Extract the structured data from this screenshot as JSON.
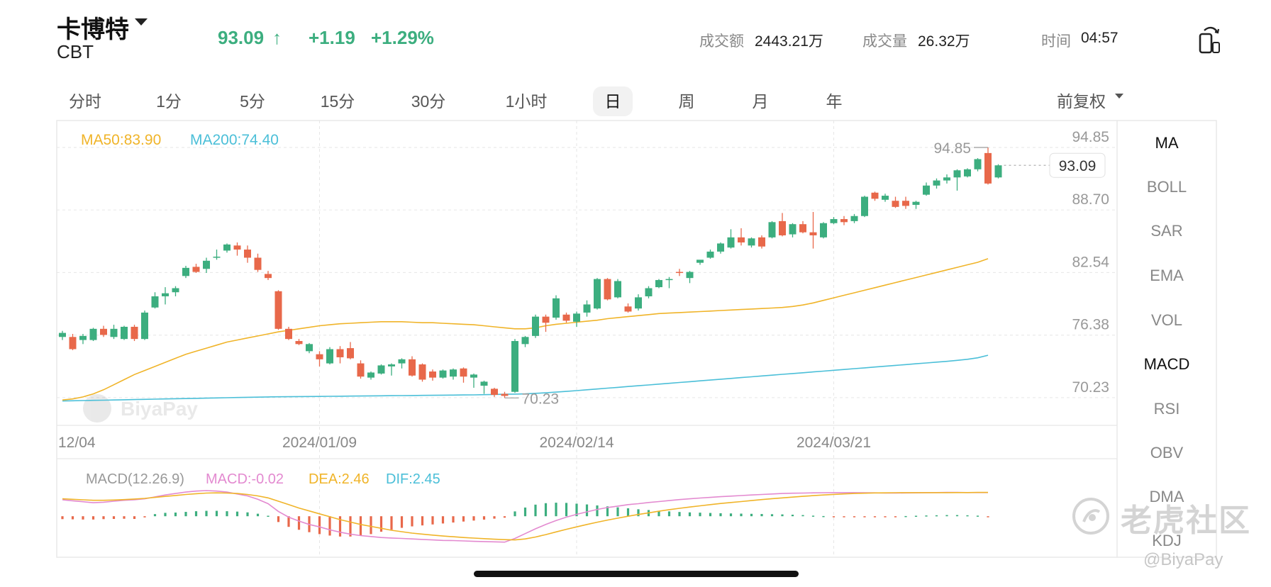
{
  "header": {
    "name": "卡博特",
    "code": "CBT",
    "price": "93.09",
    "arrow": "↑",
    "change": "+1.19",
    "change_pct": "+1.29%",
    "turnover_label": "成交额",
    "turnover_value": "2443.21万",
    "volume_label": "成交量",
    "volume_value": "26.32万",
    "time_label": "时间",
    "time_value": "04:57",
    "up_color": "#3cae7f",
    "down_color": "#e8684a"
  },
  "periods": {
    "tabs": [
      "分时",
      "1分",
      "5分",
      "15分",
      "30分",
      "1小时",
      "日",
      "周",
      "月",
      "年"
    ],
    "active": "日",
    "adjust_label": "前复权"
  },
  "side_menu": {
    "items": [
      "MA",
      "BOLL",
      "SAR",
      "EMA",
      "VOL",
      "MACD",
      "RSI",
      "OBV",
      "DMA",
      "KDJ"
    ],
    "active": [
      "MA",
      "MACD"
    ]
  },
  "chart_data": {
    "type": "candlestick",
    "ylim": [
      67.5,
      97.5
    ],
    "yticks": [
      "94.85",
      "88.70",
      "82.54",
      "76.38",
      "70.23"
    ],
    "yticks_values": [
      94.85,
      88.7,
      82.54,
      76.38,
      70.23
    ],
    "xticks": [
      "12/04",
      "2024/01/09",
      "2024/02/14",
      "2024/03/21"
    ],
    "xticks_index": [
      0,
      25,
      50,
      75
    ],
    "ma_legend": [
      "MA50:83.90",
      "MA200:74.40"
    ],
    "ma50_color": "#f0b429",
    "ma200_color": "#4bbfd8",
    "high_label": "94.85",
    "low_label": "70.23",
    "last_label": "93.09",
    "candles": [
      {
        "o": 76.2,
        "h": 76.8,
        "c": 76.6,
        "l": 75.9
      },
      {
        "o": 76.2,
        "h": 76.5,
        "c": 75.0,
        "l": 74.9
      },
      {
        "o": 75.9,
        "h": 76.5,
        "c": 76.3,
        "l": 75.5
      },
      {
        "o": 75.9,
        "h": 77.1,
        "c": 77.0,
        "l": 75.8
      },
      {
        "o": 77.0,
        "h": 77.3,
        "c": 76.4,
        "l": 76.2
      },
      {
        "o": 76.2,
        "h": 77.4,
        "c": 77.0,
        "l": 76.0
      },
      {
        "o": 76.0,
        "h": 77.3,
        "c": 77.2,
        "l": 75.9
      },
      {
        "o": 77.2,
        "h": 77.4,
        "c": 76.0,
        "l": 75.8
      },
      {
        "o": 76.0,
        "h": 78.8,
        "c": 78.6,
        "l": 75.9
      },
      {
        "o": 79.1,
        "h": 80.6,
        "c": 80.2,
        "l": 79.0
      },
      {
        "o": 80.2,
        "h": 81.1,
        "c": 80.5,
        "l": 79.4
      },
      {
        "o": 80.6,
        "h": 81.2,
        "c": 81.0,
        "l": 80.2
      },
      {
        "o": 82.2,
        "h": 83.2,
        "c": 83.0,
        "l": 82.0
      },
      {
        "o": 83.1,
        "h": 83.4,
        "c": 82.6,
        "l": 82.5
      },
      {
        "o": 82.9,
        "h": 84.0,
        "c": 83.7,
        "l": 82.5
      },
      {
        "o": 84.0,
        "h": 84.8,
        "c": 84.1,
        "l": 83.8
      },
      {
        "o": 84.7,
        "h": 85.4,
        "c": 85.3,
        "l": 84.5
      },
      {
        "o": 85.2,
        "h": 85.5,
        "c": 84.8,
        "l": 84.2
      },
      {
        "o": 84.8,
        "h": 85.2,
        "c": 84.0,
        "l": 83.5
      },
      {
        "o": 84.0,
        "h": 84.4,
        "c": 82.8,
        "l": 82.6
      },
      {
        "o": 82.4,
        "h": 82.7,
        "c": 82.0,
        "l": 81.8
      },
      {
        "o": 80.7,
        "h": 80.8,
        "c": 77.0,
        "l": 76.9
      },
      {
        "o": 77.0,
        "h": 77.2,
        "c": 76.0,
        "l": 75.9
      },
      {
        "o": 75.8,
        "h": 76.0,
        "c": 75.5,
        "l": 75.4
      },
      {
        "o": 74.8,
        "h": 75.6,
        "c": 75.5,
        "l": 74.6
      },
      {
        "o": 74.5,
        "h": 74.8,
        "c": 74.0,
        "l": 73.3
      },
      {
        "o": 73.6,
        "h": 75.2,
        "c": 75.0,
        "l": 73.5
      },
      {
        "o": 75.0,
        "h": 75.3,
        "c": 74.2,
        "l": 73.6
      },
      {
        "o": 75.1,
        "h": 75.7,
        "c": 74.1,
        "l": 74.0
      },
      {
        "o": 73.6,
        "h": 73.9,
        "c": 72.3,
        "l": 72.1
      },
      {
        "o": 72.2,
        "h": 72.8,
        "c": 72.7,
        "l": 72.0
      },
      {
        "o": 72.6,
        "h": 73.5,
        "c": 73.4,
        "l": 72.5
      },
      {
        "o": 73.3,
        "h": 73.6,
        "c": 73.5,
        "l": 72.4
      },
      {
        "o": 73.6,
        "h": 74.1,
        "c": 74.0,
        "l": 73.1
      },
      {
        "o": 74.0,
        "h": 74.3,
        "c": 72.4,
        "l": 72.3
      },
      {
        "o": 73.5,
        "h": 73.6,
        "c": 72.0,
        "l": 71.8
      },
      {
        "o": 72.8,
        "h": 73.0,
        "c": 72.2,
        "l": 71.9
      },
      {
        "o": 72.2,
        "h": 73.0,
        "c": 72.9,
        "l": 72.1
      },
      {
        "o": 72.3,
        "h": 73.1,
        "c": 73.0,
        "l": 72.0
      },
      {
        "o": 73.1,
        "h": 73.2,
        "c": 72.3,
        "l": 71.7
      },
      {
        "o": 72.2,
        "h": 72.6,
        "c": 72.5,
        "l": 71.2
      },
      {
        "o": 71.4,
        "h": 71.9,
        "c": 71.8,
        "l": 70.6
      },
      {
        "o": 71.1,
        "h": 71.2,
        "c": 70.5,
        "l": 70.3
      },
      {
        "o": 70.6,
        "h": 70.8,
        "c": 70.4,
        "l": 70.2
      },
      {
        "o": 70.8,
        "h": 76.0,
        "c": 75.8,
        "l": 70.7
      },
      {
        "o": 75.5,
        "h": 76.3,
        "c": 76.2,
        "l": 75.2
      },
      {
        "o": 76.3,
        "h": 78.4,
        "c": 78.2,
        "l": 76.1
      },
      {
        "o": 78.2,
        "h": 78.4,
        "c": 77.6,
        "l": 76.7
      },
      {
        "o": 78.1,
        "h": 80.3,
        "c": 80.0,
        "l": 77.9
      },
      {
        "o": 78.4,
        "h": 78.6,
        "c": 77.8,
        "l": 77.6
      },
      {
        "o": 77.7,
        "h": 78.7,
        "c": 78.5,
        "l": 77.2
      },
      {
        "o": 78.6,
        "h": 79.8,
        "c": 79.4,
        "l": 78.2
      },
      {
        "o": 79.0,
        "h": 82.0,
        "c": 81.9,
        "l": 78.9
      },
      {
        "o": 81.9,
        "h": 82.0,
        "c": 79.9,
        "l": 79.8
      },
      {
        "o": 80.1,
        "h": 81.9,
        "c": 81.7,
        "l": 80.0
      },
      {
        "o": 79.2,
        "h": 79.5,
        "c": 78.7,
        "l": 78.6
      },
      {
        "o": 79.0,
        "h": 80.4,
        "c": 80.1,
        "l": 78.8
      },
      {
        "o": 80.2,
        "h": 81.2,
        "c": 81.0,
        "l": 80.0
      },
      {
        "o": 81.1,
        "h": 81.9,
        "c": 81.8,
        "l": 81.0
      },
      {
        "o": 81.8,
        "h": 82.1,
        "c": 81.9,
        "l": 81.0
      },
      {
        "o": 82.6,
        "h": 82.9,
        "c": 82.5,
        "l": 82.2
      },
      {
        "o": 82.0,
        "h": 82.7,
        "c": 82.6,
        "l": 81.5
      },
      {
        "o": 83.5,
        "h": 83.7,
        "c": 83.8,
        "l": 83.3
      },
      {
        "o": 84.0,
        "h": 84.8,
        "c": 84.6,
        "l": 83.9
      },
      {
        "o": 84.6,
        "h": 85.5,
        "c": 85.4,
        "l": 84.4
      },
      {
        "o": 85.0,
        "h": 86.8,
        "c": 86.0,
        "l": 84.9
      },
      {
        "o": 86.0,
        "h": 86.9,
        "c": 85.5,
        "l": 85.2
      },
      {
        "o": 85.2,
        "h": 86.0,
        "c": 85.9,
        "l": 85.0
      },
      {
        "o": 86.0,
        "h": 86.2,
        "c": 85.1,
        "l": 84.9
      },
      {
        "o": 86.0,
        "h": 87.6,
        "c": 87.5,
        "l": 85.9
      },
      {
        "o": 87.6,
        "h": 88.4,
        "c": 86.2,
        "l": 86.1
      },
      {
        "o": 86.3,
        "h": 87.4,
        "c": 87.3,
        "l": 86.0
      },
      {
        "o": 87.3,
        "h": 87.6,
        "c": 86.5,
        "l": 86.4
      },
      {
        "o": 86.5,
        "h": 88.5,
        "c": 86.2,
        "l": 84.9
      },
      {
        "o": 86.0,
        "h": 87.5,
        "c": 87.4,
        "l": 85.9
      },
      {
        "o": 87.4,
        "h": 88.0,
        "c": 87.8,
        "l": 87.3
      },
      {
        "o": 87.8,
        "h": 88.1,
        "c": 87.5,
        "l": 87.2
      },
      {
        "o": 87.6,
        "h": 88.3,
        "c": 88.1,
        "l": 87.4
      },
      {
        "o": 88.1,
        "h": 90.1,
        "c": 90.0,
        "l": 88.0
      },
      {
        "o": 90.4,
        "h": 90.5,
        "c": 89.8,
        "l": 89.6
      },
      {
        "o": 89.7,
        "h": 90.3,
        "c": 90.1,
        "l": 89.5
      },
      {
        "o": 89.6,
        "h": 90.0,
        "c": 89.0,
        "l": 88.9
      },
      {
        "o": 89.6,
        "h": 90.0,
        "c": 89.1,
        "l": 88.8
      },
      {
        "o": 89.2,
        "h": 89.6,
        "c": 89.5,
        "l": 88.8
      },
      {
        "o": 90.2,
        "h": 91.4,
        "c": 91.1,
        "l": 90.1
      },
      {
        "o": 91.1,
        "h": 91.8,
        "c": 91.6,
        "l": 90.8
      },
      {
        "o": 91.6,
        "h": 92.2,
        "c": 91.9,
        "l": 91.3
      },
      {
        "o": 91.9,
        "h": 92.7,
        "c": 92.6,
        "l": 90.6
      },
      {
        "o": 92.0,
        "h": 92.8,
        "c": 92.7,
        "l": 91.9
      },
      {
        "o": 92.7,
        "h": 93.8,
        "c": 93.7,
        "l": 92.5
      },
      {
        "o": 94.3,
        "h": 94.85,
        "c": 91.3,
        "l": 91.2
      },
      {
        "o": 91.9,
        "h": 93.2,
        "c": 93.09,
        "l": 91.8
      }
    ],
    "ma50": [
      70.0,
      70.1,
      70.3,
      70.6,
      71.0,
      71.5,
      72.0,
      72.5,
      72.9,
      73.3,
      73.7,
      74.1,
      74.5,
      74.8,
      75.1,
      75.4,
      75.7,
      75.9,
      76.1,
      76.3,
      76.5,
      76.7,
      76.85,
      77.0,
      77.15,
      77.3,
      77.4,
      77.5,
      77.55,
      77.6,
      77.65,
      77.7,
      77.7,
      77.7,
      77.65,
      77.6,
      77.6,
      77.55,
      77.5,
      77.45,
      77.4,
      77.3,
      77.2,
      77.1,
      77.0,
      77.0,
      77.1,
      77.3,
      77.45,
      77.55,
      77.65,
      77.75,
      77.85,
      78.0,
      78.1,
      78.2,
      78.3,
      78.4,
      78.5,
      78.55,
      78.6,
      78.65,
      78.7,
      78.75,
      78.8,
      78.85,
      78.9,
      78.95,
      79.0,
      79.05,
      79.1,
      79.2,
      79.35,
      79.55,
      79.8,
      80.05,
      80.3,
      80.55,
      80.8,
      81.05,
      81.3,
      81.55,
      81.8,
      82.05,
      82.3,
      82.55,
      82.8,
      83.05,
      83.3,
      83.55,
      83.9
    ],
    "ma200": [
      69.9,
      69.92,
      69.94,
      69.96,
      69.98,
      70.0,
      70.02,
      70.04,
      70.06,
      70.08,
      70.1,
      70.12,
      70.14,
      70.16,
      70.18,
      70.2,
      70.22,
      70.24,
      70.26,
      70.28,
      70.3,
      70.31,
      70.32,
      70.33,
      70.34,
      70.35,
      70.36,
      70.37,
      70.38,
      70.39,
      70.4,
      70.41,
      70.42,
      70.43,
      70.44,
      70.45,
      70.46,
      70.47,
      70.48,
      70.49,
      70.5,
      70.52,
      70.54,
      70.56,
      70.58,
      70.6,
      70.65,
      70.7,
      70.77,
      70.84,
      70.92,
      71.0,
      71.08,
      71.16,
      71.24,
      71.32,
      71.4,
      71.48,
      71.56,
      71.64,
      71.72,
      71.8,
      71.88,
      71.96,
      72.04,
      72.12,
      72.2,
      72.28,
      72.36,
      72.44,
      72.52,
      72.6,
      72.68,
      72.76,
      72.84,
      72.92,
      73.0,
      73.08,
      73.16,
      73.24,
      73.32,
      73.4,
      73.48,
      73.56,
      73.64,
      73.72,
      73.8,
      73.9,
      74.0,
      74.15,
      74.4
    ],
    "macd_legend": [
      "MACD(12.26.9)",
      "MACD:-0.02",
      "DEA:2.46",
      "DIF:2.45"
    ],
    "macd_legend_colors": [
      "#999999",
      "#e38ad0",
      "#f0b429",
      "#4bbfd8"
    ],
    "macd_ylim": [
      -3.8,
      2.8
    ],
    "macd_hist": [
      -0.3,
      -0.32,
      -0.34,
      -0.34,
      -0.3,
      -0.28,
      -0.26,
      -0.28,
      -0.12,
      0.22,
      0.35,
      0.38,
      0.45,
      0.52,
      0.56,
      0.56,
      0.52,
      0.48,
      0.4,
      0.26,
      0.05,
      -0.6,
      -1.1,
      -1.4,
      -1.65,
      -1.85,
      -2.0,
      -2.1,
      -2.1,
      -2.0,
      -1.85,
      -1.6,
      -1.4,
      -1.2,
      -1.05,
      -0.95,
      -0.85,
      -0.75,
      -0.65,
      -0.55,
      -0.45,
      -0.35,
      -0.25,
      -0.15,
      0.5,
      0.9,
      1.2,
      1.35,
      1.4,
      1.38,
      1.3,
      1.22,
      1.12,
      1.02,
      0.92,
      0.82,
      0.72,
      0.64,
      0.56,
      0.5,
      0.44,
      0.4,
      0.37,
      0.34,
      0.31,
      0.29,
      0.27,
      0.25,
      0.23,
      0.21,
      0.19,
      0.16,
      0.12,
      0.06,
      0.02,
      -0.02,
      -0.05,
      -0.07,
      -0.08,
      -0.08,
      -0.06,
      -0.03,
      0.02,
      0.05,
      0.08,
      0.1,
      0.12,
      0.12,
      0.1,
      0.06,
      -0.02
    ],
    "macd_dif": [
      1.7,
      1.6,
      1.5,
      1.4,
      1.45,
      1.55,
      1.65,
      1.7,
      1.8,
      2.0,
      2.2,
      2.35,
      2.5,
      2.6,
      2.65,
      2.6,
      2.5,
      2.3,
      2.1,
      1.75,
      1.3,
      0.5,
      -0.1,
      -0.5,
      -0.85,
      -1.1,
      -1.4,
      -1.65,
      -1.85,
      -2.0,
      -2.1,
      -2.2,
      -2.25,
      -2.3,
      -2.35,
      -2.4,
      -2.45,
      -2.5,
      -2.52,
      -2.55,
      -2.6,
      -2.62,
      -2.65,
      -2.68,
      -2.3,
      -1.8,
      -1.3,
      -0.85,
      -0.45,
      -0.1,
      0.2,
      0.45,
      0.7,
      0.9,
      1.05,
      1.2,
      1.3,
      1.42,
      1.52,
      1.62,
      1.72,
      1.8,
      1.88,
      1.95,
      2.02,
      2.08,
      2.14,
      2.2,
      2.25,
      2.3,
      2.35,
      2.38,
      2.4,
      2.42,
      2.43,
      2.44,
      2.44,
      2.44,
      2.43,
      2.42,
      2.4,
      2.4,
      2.41,
      2.42,
      2.44,
      2.45,
      2.46,
      2.46,
      2.45,
      2.45,
      2.45
    ],
    "macd_dea": [
      1.8,
      1.75,
      1.7,
      1.65,
      1.65,
      1.68,
      1.72,
      1.78,
      1.85,
      1.95,
      2.05,
      2.15,
      2.25,
      2.33,
      2.4,
      2.42,
      2.4,
      2.35,
      2.25,
      2.1,
      1.9,
      1.55,
      1.2,
      0.85,
      0.55,
      0.25,
      -0.05,
      -0.35,
      -0.6,
      -0.85,
      -1.05,
      -1.25,
      -1.45,
      -1.6,
      -1.75,
      -1.85,
      -1.95,
      -2.05,
      -2.12,
      -2.2,
      -2.26,
      -2.32,
      -2.38,
      -2.42,
      -2.45,
      -2.35,
      -2.15,
      -1.9,
      -1.62,
      -1.35,
      -1.1,
      -0.85,
      -0.62,
      -0.4,
      -0.2,
      0.0,
      0.18,
      0.35,
      0.52,
      0.68,
      0.82,
      0.95,
      1.08,
      1.2,
      1.32,
      1.42,
      1.52,
      1.62,
      1.72,
      1.82,
      1.9,
      1.98,
      2.06,
      2.13,
      2.2,
      2.26,
      2.31,
      2.35,
      2.38,
      2.41,
      2.42,
      2.43,
      2.44,
      2.44,
      2.44,
      2.44,
      2.44,
      2.45,
      2.45,
      2.46,
      2.46
    ]
  },
  "watermark": {
    "chart_logo": "BiyaPay",
    "community": "老虎社区",
    "handle": "@BiyaPay"
  }
}
